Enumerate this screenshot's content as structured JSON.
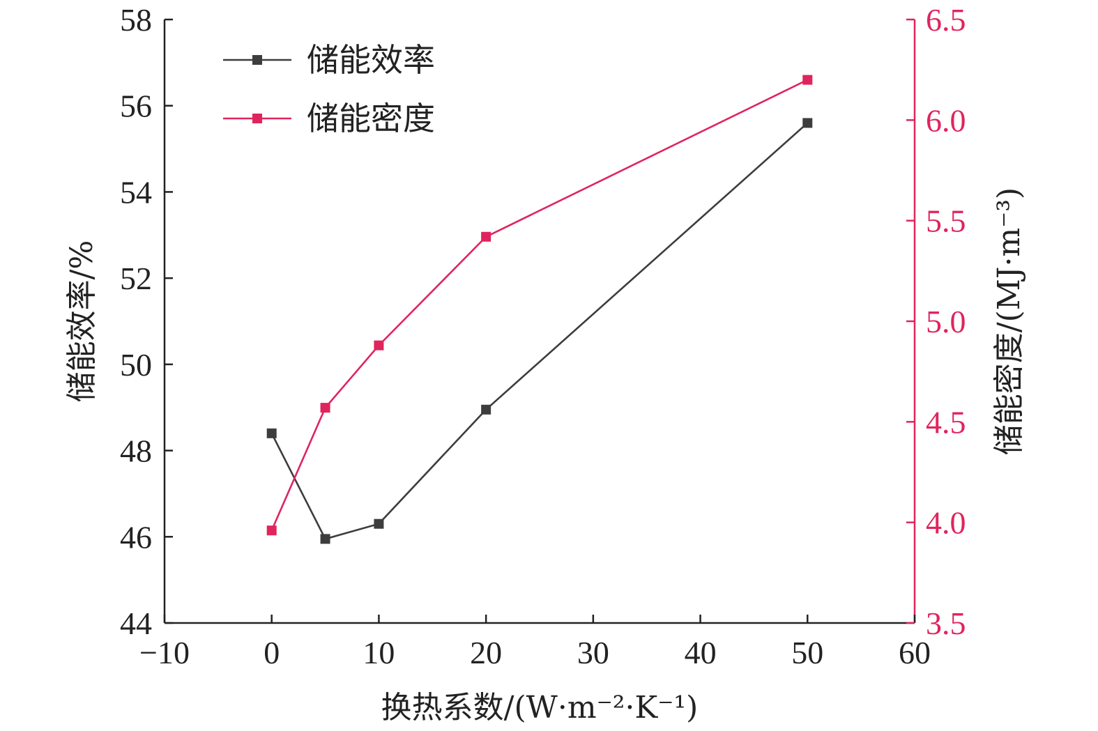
{
  "chart_data": {
    "type": "line",
    "xlabel": "换热系数/(W·m⁻²·K⁻¹)",
    "ylabel_left": "储能效率/%",
    "ylabel_right": "储能密度/(MJ·m⁻³)",
    "xlim": [
      -10,
      60
    ],
    "xticks": [
      "−10",
      "0",
      "10",
      "20",
      "30",
      "40",
      "50",
      "60"
    ],
    "ylim_left": [
      44,
      58
    ],
    "yticks_left": [
      "44",
      "46",
      "48",
      "50",
      "52",
      "54",
      "56",
      "58"
    ],
    "ylim_right": [
      3.5,
      6.5
    ],
    "yticks_right": [
      "3.5",
      "4.0",
      "4.5",
      "5.0",
      "5.5",
      "6.0",
      "6.5"
    ],
    "grid": false,
    "legend_position": "top-left",
    "series": [
      {
        "name": "储能效率",
        "axis": "left",
        "color": "#3d3d3d",
        "marker": "square",
        "x": [
          0,
          5,
          10,
          20,
          50
        ],
        "y": [
          48.4,
          45.95,
          46.3,
          48.95,
          55.6
        ]
      },
      {
        "name": "储能密度",
        "axis": "right",
        "color": "#e0245e",
        "marker": "square",
        "x": [
          0,
          5,
          10,
          20,
          50
        ],
        "y": [
          3.96,
          4.57,
          4.88,
          5.42,
          6.2
        ]
      }
    ],
    "colors": {
      "axis": "#222222",
      "right_axis": "#e0245e",
      "left_tick_text": "#222222",
      "right_tick_text": "#e0245e"
    }
  }
}
